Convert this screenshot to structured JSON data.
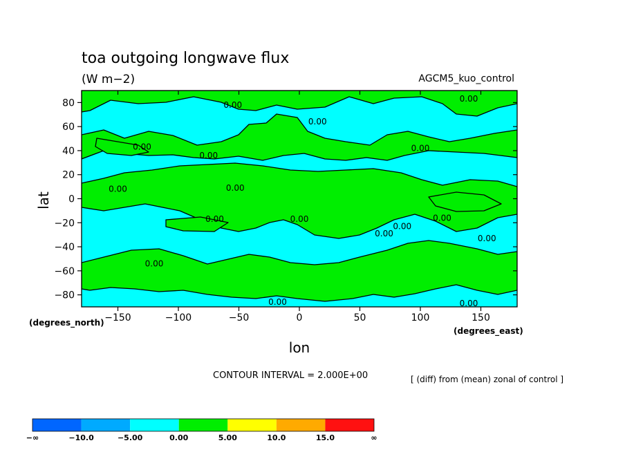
{
  "title": "toa outgoing longwave flux",
  "units": "(W m−2)",
  "model": "AGCM5_kuo_control",
  "contour_interval": "CONTOUR INTERVAL = 2.000E+00",
  "diff_note": "[ (diff) from (mean) zonal of control ]",
  "colors": {
    "negative": "#00ffff",
    "positive": "#00ee00",
    "contour": "#000000"
  },
  "chart_data": {
    "type": "contour",
    "xlabel": "lon",
    "ylabel": "lat",
    "xunit": "(degrees_east)",
    "yunit": "(degrees_north)",
    "xlim": [
      -180,
      180
    ],
    "ylim": [
      -90,
      90
    ],
    "xticks": [
      -150,
      -100,
      -50,
      0,
      50,
      100,
      150
    ],
    "yticks": [
      -80,
      -60,
      -40,
      -20,
      0,
      20,
      40,
      60,
      80
    ],
    "xtick_labels": [
      "−150",
      "−100",
      "−50",
      "0",
      "50",
      "100",
      "150"
    ],
    "ytick_labels": [
      "−80",
      "−60",
      "−40",
      "−20",
      "0",
      "20",
      "40",
      "60",
      "80"
    ],
    "contour_label": "0.00",
    "contour_labels": [
      {
        "lon": -130,
        "lat": 43
      },
      {
        "lon": -75,
        "lat": 36
      },
      {
        "lon": -55,
        "lat": 78
      },
      {
        "lon": 15,
        "lat": 64
      },
      {
        "lon": 100,
        "lat": 42
      },
      {
        "lon": 140,
        "lat": 83
      },
      {
        "lon": -150,
        "lat": 8
      },
      {
        "lon": -53,
        "lat": 9
      },
      {
        "lon": -70,
        "lat": -17
      },
      {
        "lon": 0,
        "lat": -17
      },
      {
        "lon": 85,
        "lat": -23
      },
      {
        "lon": 70,
        "lat": -29
      },
      {
        "lon": 118,
        "lat": -16
      },
      {
        "lon": 155,
        "lat": -33
      },
      {
        "lon": -120,
        "lat": -54
      },
      {
        "lon": -18,
        "lat": -86
      },
      {
        "lon": 140,
        "lat": -87
      }
    ],
    "colorbar": {
      "labels": [
        "−∞",
        "−10.0",
        "−5.00",
        "0.00",
        "5.00",
        "10.0",
        "15.0",
        "∞"
      ],
      "colors": [
        "#0066ff",
        "#00aaff",
        "#00ffff",
        "#00ee00",
        "#ffff00",
        "#ffaa00",
        "#ff1111"
      ]
    }
  }
}
